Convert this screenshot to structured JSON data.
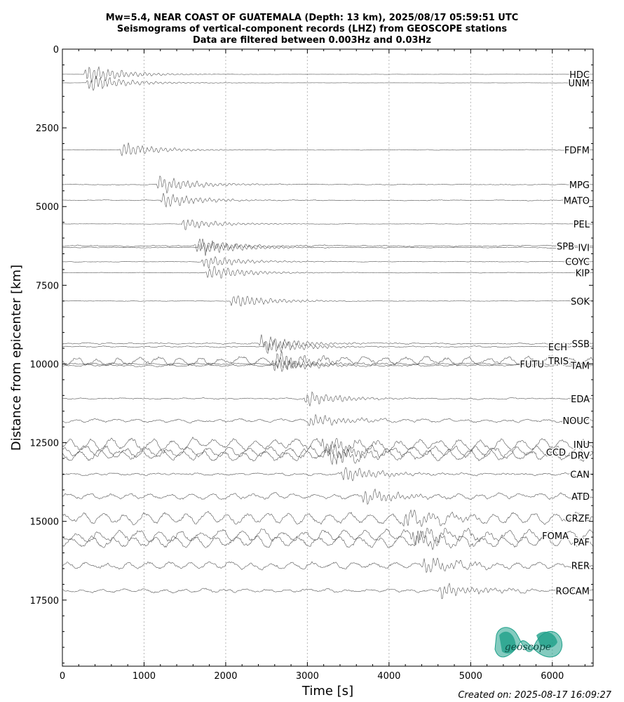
{
  "chart_data": {
    "type": "line",
    "title": "Mw=5.4, NEAR COAST OF GUATEMALA (Depth: 13 km), 2025/08/17 05:59:51 UTC",
    "subtitle": "Seismograms of vertical-component records (LHZ) from GEOSCOPE stations",
    "subtitle2": "Data are filtered between 0.003Hz and 0.03Hz",
    "xlabel": "Time [s]",
    "ylabel": "Distance from epicenter [km]",
    "xlim": [
      0,
      6500
    ],
    "ylim": [
      19600,
      0
    ],
    "y_inverted": true,
    "xticks": [
      0,
      1000,
      2000,
      3000,
      4000,
      5000,
      6000
    ],
    "yticks": [
      0,
      2500,
      5000,
      7500,
      10000,
      12500,
      15000,
      17500
    ],
    "grid": "vertical dotted",
    "series": [
      {
        "name": "HDC",
        "distance": 800,
        "onset": 260,
        "amplitude": 1.0,
        "noise": 0.03
      },
      {
        "name": "UNM",
        "distance": 1070,
        "onset": 290,
        "amplitude": 0.9,
        "noise": 0.03
      },
      {
        "name": "FDFM",
        "distance": 3200,
        "onset": 700,
        "amplitude": 0.8,
        "noise": 0.08
      },
      {
        "name": "MPG",
        "distance": 4300,
        "onset": 1150,
        "amplitude": 0.9,
        "noise": 0.1
      },
      {
        "name": "MATO",
        "distance": 4800,
        "onset": 1200,
        "amplitude": 0.8,
        "noise": 0.1
      },
      {
        "name": "PEL",
        "distance": 5550,
        "onset": 1450,
        "amplitude": 0.6,
        "noise": 0.06
      },
      {
        "name": "SPB",
        "distance": 6250,
        "onset": 1600,
        "amplitude": 0.7,
        "noise": 0.15
      },
      {
        "name": "IVI",
        "distance": 6300,
        "onset": 1650,
        "amplitude": 0.9,
        "noise": 0.1
      },
      {
        "name": "COYC",
        "distance": 6750,
        "onset": 1700,
        "amplitude": 0.7,
        "noise": 0.08
      },
      {
        "name": "KIP",
        "distance": 7100,
        "onset": 1750,
        "amplitude": 0.8,
        "noise": 0.08
      },
      {
        "name": "SOK",
        "distance": 8000,
        "onset": 2050,
        "amplitude": 0.8,
        "noise": 0.08
      },
      {
        "name": "SSB",
        "distance": 9350,
        "onset": 2400,
        "amplitude": 0.9,
        "noise": 0.15
      },
      {
        "name": "ECH",
        "distance": 9450,
        "onset": 2450,
        "amplitude": 0.8,
        "noise": 0.15
      },
      {
        "name": "TRIS",
        "distance": 9900,
        "onset": 2550,
        "amplitude": 0.9,
        "noise": 0.5
      },
      {
        "name": "FUTU",
        "distance": 10000,
        "onset": 2600,
        "amplitude": 0.7,
        "noise": 0.2
      },
      {
        "name": "TAM",
        "distance": 10050,
        "onset": 2600,
        "amplitude": 0.6,
        "noise": 0.2
      },
      {
        "name": "EDA",
        "distance": 11100,
        "onset": 2950,
        "amplitude": 0.8,
        "noise": 0.15
      },
      {
        "name": "NOUC",
        "distance": 11800,
        "onset": 3000,
        "amplitude": 0.7,
        "noise": 0.3
      },
      {
        "name": "INU",
        "distance": 12550,
        "onset": 3150,
        "amplitude": 0.8,
        "noise": 0.6
      },
      {
        "name": "CCD",
        "distance": 12800,
        "onset": 3200,
        "amplitude": 0.8,
        "noise": 0.6
      },
      {
        "name": "DRV",
        "distance": 12900,
        "onset": 3250,
        "amplitude": 0.8,
        "noise": 0.6
      },
      {
        "name": "CAN",
        "distance": 13500,
        "onset": 3400,
        "amplitude": 0.8,
        "noise": 0.25
      },
      {
        "name": "ATD",
        "distance": 14200,
        "onset": 3650,
        "amplitude": 0.8,
        "noise": 0.4
      },
      {
        "name": "CRZF",
        "distance": 14900,
        "onset": 4150,
        "amplitude": 0.8,
        "noise": 0.6
      },
      {
        "name": "FOMA",
        "distance": 15450,
        "onset": 4250,
        "amplitude": 0.9,
        "noise": 0.6
      },
      {
        "name": "PAF",
        "distance": 15650,
        "onset": 4300,
        "amplitude": 0.8,
        "noise": 0.6
      },
      {
        "name": "RER",
        "distance": 16400,
        "onset": 4400,
        "amplitude": 0.8,
        "noise": 0.45
      },
      {
        "name": "ROCAM",
        "distance": 17200,
        "onset": 4600,
        "amplitude": 0.8,
        "noise": 0.3
      }
    ]
  },
  "footer": {
    "created": "Created on: 2025-08-17 16:09:27"
  },
  "logo": {
    "text": "geoscope",
    "color": "#1fa08a"
  }
}
